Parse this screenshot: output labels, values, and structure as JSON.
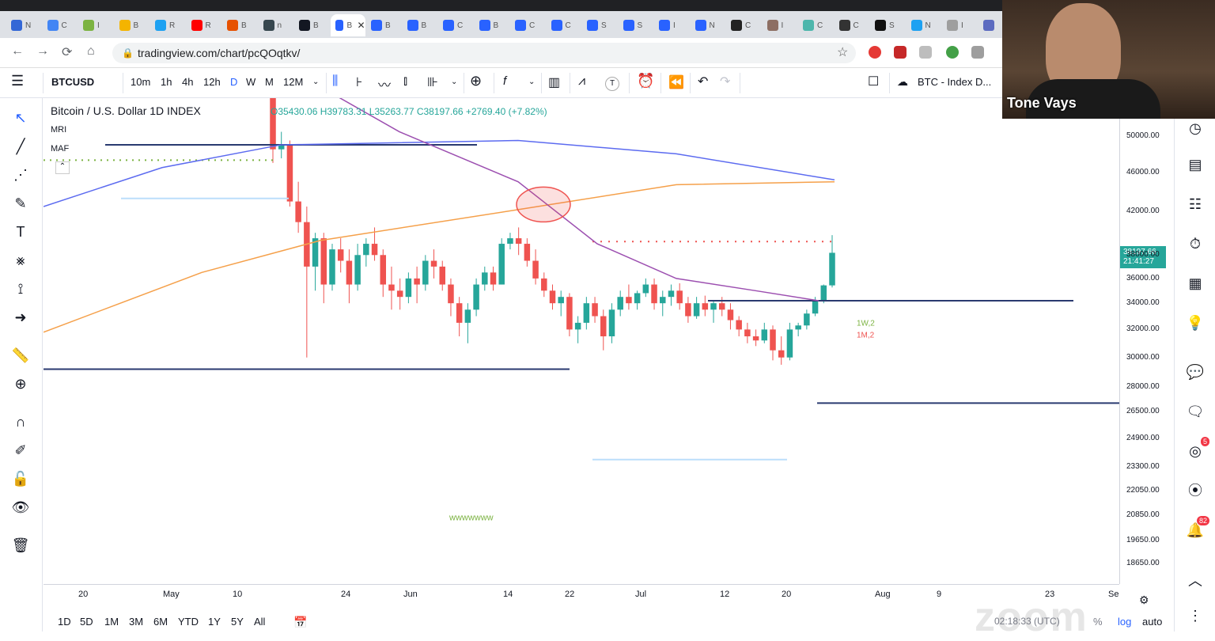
{
  "browser": {
    "tabs": [
      {
        "label": "N",
        "color": "#3367d6"
      },
      {
        "label": "C",
        "color": "#4285f4"
      },
      {
        "label": "I",
        "color": "#7cb342"
      },
      {
        "label": "B",
        "color": "#f4b400"
      },
      {
        "label": "R",
        "color": "#1da1f2"
      },
      {
        "label": "R",
        "color": "#ff0000"
      },
      {
        "label": "B",
        "color": "#e65100"
      },
      {
        "label": "n",
        "color": "#37474f"
      },
      {
        "label": "B",
        "color": "#131722"
      },
      {
        "label": "B",
        "color": "#2962ff"
      },
      {
        "label": "B",
        "color": "#2962ff"
      },
      {
        "label": "B",
        "color": "#2962ff"
      },
      {
        "label": "C",
        "color": "#2962ff"
      },
      {
        "label": "B",
        "color": "#2962ff"
      },
      {
        "label": "C",
        "color": "#2962ff"
      },
      {
        "label": "C",
        "color": "#2962ff"
      },
      {
        "label": "S",
        "color": "#2962ff"
      },
      {
        "label": "S",
        "color": "#2962ff"
      },
      {
        "label": "I",
        "color": "#2962ff"
      },
      {
        "label": "N",
        "color": "#2962ff"
      },
      {
        "label": "C",
        "color": "#222222"
      },
      {
        "label": "I",
        "color": "#8d6e63"
      },
      {
        "label": "C",
        "color": "#4db6ac"
      },
      {
        "label": "C",
        "color": "#333333"
      },
      {
        "label": "S",
        "color": "#111111"
      },
      {
        "label": "N",
        "color": "#1da1f2"
      },
      {
        "label": "I",
        "color": "#9e9e9e"
      },
      {
        "label": "",
        "color": "#5c6bc0"
      }
    ],
    "active_tab_label": "B",
    "url": "tradingview.com/chart/pcQOqtkv/"
  },
  "toolbar": {
    "symbol": "BTCUSD",
    "intervals": [
      "10m",
      "1h",
      "4h",
      "12h",
      "D",
      "W",
      "M",
      "12M"
    ],
    "active_interval": "D",
    "indicator_T": "T",
    "compare_label": "BTC - Index D..."
  },
  "legend": {
    "title": "Bitcoin / U.S. Dollar  1D  INDEX",
    "ohlc": "O35430.06  H39783.31  L35263.77  C38197.66  +2769.40 (+7.82%)",
    "indicators": [
      "MRI",
      "MAF"
    ]
  },
  "chart_data": {
    "type": "candlestick",
    "symbol": "BTCUSD",
    "interval": "1D",
    "scale": "log",
    "current_price": 38197.66,
    "current_time": "21:41:27",
    "price_ticks": [
      50000.0,
      46000.0,
      42000.0,
      38000.0,
      36000.0,
      34000.0,
      32000.0,
      30000.0,
      28000.0,
      26500.0,
      24900.0,
      23300.0,
      22050.0,
      20850.0,
      19650.0,
      18650.0
    ],
    "price_tick_labels": [
      "50000.00",
      "46000.00",
      "42000.00",
      "38000.00",
      "36000.00",
      "34000.00",
      "32000.00",
      "30000.00",
      "28000.00",
      "26500.00",
      "24900.00",
      "23300.00",
      "22050.00",
      "20850.00",
      "19650.00",
      "18650.00"
    ],
    "time_ticks": [
      "20",
      "May",
      "10",
      "24",
      "Jun",
      "14",
      "22",
      "Jul",
      "12",
      "20",
      "Aug",
      "9",
      "23",
      "Se"
    ],
    "candles": [
      [
        56000,
        58000,
        47000,
        48500
      ],
      [
        48500,
        50500,
        47500,
        49000
      ],
      [
        49000,
        49500,
        42500,
        43000
      ],
      [
        43000,
        45000,
        40000,
        41000
      ],
      [
        41000,
        42500,
        30000,
        37000
      ],
      [
        37000,
        40000,
        35000,
        39500
      ],
      [
        39500,
        40000,
        34000,
        35500
      ],
      [
        35500,
        39000,
        35000,
        38500
      ],
      [
        38500,
        39500,
        36500,
        37500
      ],
      [
        37500,
        38500,
        34000,
        35500
      ],
      [
        35500,
        39000,
        35000,
        38000
      ],
      [
        38000,
        39500,
        37000,
        39000
      ],
      [
        39000,
        40500,
        37500,
        38000
      ],
      [
        38000,
        38500,
        34500,
        35500
      ],
      [
        35500,
        37000,
        33500,
        35000
      ],
      [
        35000,
        36000,
        33500,
        34500
      ],
      [
        34500,
        36500,
        34000,
        36000
      ],
      [
        36000,
        37000,
        34000,
        35500
      ],
      [
        35500,
        38000,
        35000,
        37500
      ],
      [
        37500,
        38500,
        36000,
        37000
      ],
      [
        37000,
        37500,
        35000,
        35500
      ],
      [
        35500,
        36000,
        33000,
        34000
      ],
      [
        34000,
        34500,
        31500,
        32500
      ],
      [
        32500,
        34000,
        31000,
        33500
      ],
      [
        33500,
        36000,
        33000,
        35500
      ],
      [
        35500,
        37000,
        35000,
        36500
      ],
      [
        36500,
        37000,
        35000,
        35500
      ],
      [
        35500,
        39500,
        35500,
        39000
      ],
      [
        39000,
        40000,
        38500,
        39500
      ],
      [
        39500,
        40500,
        38000,
        39000
      ],
      [
        39000,
        39500,
        37000,
        37500
      ],
      [
        37500,
        38500,
        35500,
        36000
      ],
      [
        36000,
        36500,
        34500,
        35000
      ],
      [
        35000,
        35500,
        33500,
        34000
      ],
      [
        34000,
        35000,
        33000,
        34500
      ],
      [
        34500,
        34800,
        31500,
        32000
      ],
      [
        32000,
        33000,
        31000,
        32500
      ],
      [
        32500,
        34500,
        32000,
        34000
      ],
      [
        34000,
        34500,
        32500,
        33000
      ],
      [
        33000,
        33500,
        30500,
        31500
      ],
      [
        31500,
        34000,
        31000,
        33500
      ],
      [
        33500,
        35000,
        33000,
        34500
      ],
      [
        34500,
        35500,
        33500,
        34000
      ],
      [
        34000,
        35000,
        33500,
        34800
      ],
      [
        34800,
        36000,
        34500,
        35500
      ],
      [
        35500,
        36000,
        33500,
        34000
      ],
      [
        34000,
        35000,
        33000,
        34500
      ],
      [
        34500,
        35500,
        33800,
        35000
      ],
      [
        35000,
        35600,
        33500,
        34000
      ],
      [
        34000,
        34500,
        32500,
        33000
      ],
      [
        33000,
        34500,
        32800,
        34000
      ],
      [
        34000,
        34600,
        33000,
        33500
      ],
      [
        33500,
        34200,
        32500,
        34000
      ],
      [
        34000,
        34500,
        33000,
        33500
      ],
      [
        33500,
        34000,
        32000,
        32700
      ],
      [
        32700,
        33000,
        31500,
        32000
      ],
      [
        32000,
        32500,
        31000,
        31500
      ],
      [
        31500,
        32000,
        30800,
        31200
      ],
      [
        31200,
        32500,
        31000,
        32000
      ],
      [
        32000,
        32300,
        29800,
        30500
      ],
      [
        30500,
        31500,
        29500,
        30000
      ],
      [
        30000,
        32500,
        29800,
        32000
      ],
      [
        32000,
        32500,
        31500,
        32300
      ],
      [
        32300,
        33500,
        32000,
        33200
      ],
      [
        33200,
        34500,
        33000,
        34200
      ],
      [
        34200,
        35500,
        34000,
        35430
      ],
      [
        35430,
        39783,
        35263,
        38197
      ]
    ],
    "annotations": [
      "1W,2",
      "1M,2",
      "wwwwwww"
    ]
  },
  "price_axis": {
    "current_price_label": "38197.66",
    "current_time_label": "21:41:27",
    "ticks": [
      "50000.00",
      "46000.00",
      "42000.00",
      "38000.00",
      "36000.00",
      "34000.00",
      "32000.00",
      "30000.00",
      "28000.00",
      "26500.00",
      "24900.00",
      "23300.00",
      "22050.00",
      "20850.00",
      "19650.00",
      "18650.00"
    ]
  },
  "bottom_bar": {
    "ranges": [
      "1D",
      "5D",
      "1M",
      "3M",
      "6M",
      "YTD",
      "1Y",
      "5Y",
      "All"
    ],
    "clock": "02:18:33 (UTC)",
    "percent": "%",
    "log": "log",
    "auto": "auto"
  },
  "webcam": {
    "name": "Tone Vays"
  },
  "watermark": "zoom",
  "right_badges": {
    "ideas": "5",
    "alerts": "82"
  },
  "colors": {
    "up": "#26a69a",
    "down": "#ef5350",
    "ma_blue": "#5c6bf0",
    "ma_orange": "#f5a04a",
    "ma_purple": "#9c4fb0",
    "level": "#2a3a70"
  }
}
